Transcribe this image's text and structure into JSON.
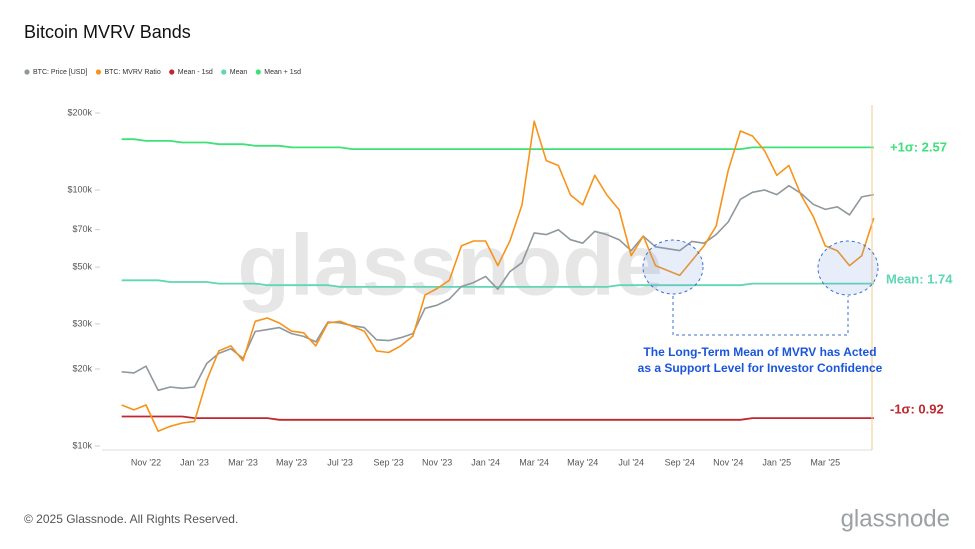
{
  "chart_data": {
    "type": "line",
    "title": "Bitcoin MVRV Bands",
    "categories": [
      null,
      null,
      "Nov '22",
      null,
      null,
      null,
      "Jan '23",
      null,
      null,
      null,
      "Mar '23",
      null,
      null,
      null,
      "May '23",
      null,
      null,
      null,
      "Jul '23",
      null,
      null,
      null,
      "Sep '23",
      null,
      null,
      null,
      "Nov '23",
      null,
      null,
      null,
      "Jan '24",
      null,
      null,
      null,
      "Mar '24",
      null,
      null,
      null,
      "May '24",
      null,
      null,
      null,
      "Jul '24",
      null,
      null,
      null,
      "Sep '24",
      null,
      null,
      null,
      "Nov '24",
      null,
      null,
      null,
      "Jan '25",
      null,
      null,
      null,
      "Mar '25",
      null,
      null,
      null,
      null
    ],
    "ylim": [
      10000,
      200000
    ],
    "yticks": [
      {
        "value": 10000,
        "label": "$10k"
      },
      {
        "value": 20000,
        "label": "$20k"
      },
      {
        "value": 30000,
        "label": "$30k"
      },
      {
        "value": 50000,
        "label": "$50k"
      },
      {
        "value": 70000,
        "label": "$70k"
      },
      {
        "value": 100000,
        "label": "$100k"
      },
      {
        "value": 200000,
        "label": "$200k"
      }
    ],
    "log_scale": true,
    "y2lim": [
      0.75,
      2.78
    ],
    "series": [
      {
        "name": "BTC: Price [USD]",
        "color": "#8e989d",
        "values": [
          19500,
          19300,
          20500,
          16500,
          17000,
          16800,
          17000,
          21000,
          23000,
          24000,
          22000,
          28000,
          28500,
          29000,
          27500,
          26800,
          25500,
          30500,
          30300,
          29500,
          29000,
          26000,
          25800,
          26500,
          27500,
          34500,
          35500,
          37500,
          42000,
          43500,
          46000,
          41000,
          48000,
          52000,
          68000,
          67000,
          70000,
          64000,
          62000,
          69000,
          67000,
          64000,
          58000,
          66000,
          60000,
          59000,
          58000,
          63000,
          62000,
          67000,
          75000,
          92000,
          98000,
          100000,
          96000,
          104000,
          97000,
          88000,
          84000,
          86000,
          80000,
          94000,
          96000
        ]
      },
      {
        "name": "BTC: MVRV Ratio",
        "color": "#f7931a",
        "axis": "y2",
        "values": [
          1.0,
          0.97,
          1.0,
          0.84,
          0.87,
          0.89,
          0.9,
          1.15,
          1.33,
          1.36,
          1.27,
          1.51,
          1.53,
          1.5,
          1.45,
          1.44,
          1.36,
          1.5,
          1.51,
          1.48,
          1.45,
          1.33,
          1.32,
          1.36,
          1.42,
          1.67,
          1.71,
          1.76,
          1.97,
          2.0,
          2.0,
          1.85,
          2.0,
          2.22,
          2.73,
          2.49,
          2.46,
          2.28,
          2.22,
          2.4,
          2.28,
          2.19,
          1.91,
          2.03,
          1.85,
          1.82,
          1.79,
          1.88,
          1.97,
          2.09,
          2.43,
          2.67,
          2.64,
          2.55,
          2.4,
          2.46,
          2.28,
          2.15,
          1.97,
          1.94,
          1.85,
          1.91,
          2.14
        ]
      },
      {
        "name": "Mean - 1sd",
        "color": "#c0262d",
        "axis": "y2",
        "values": [
          0.93,
          0.93,
          0.93,
          0.93,
          0.93,
          0.93,
          0.92,
          0.92,
          0.92,
          0.92,
          0.92,
          0.92,
          0.92,
          0.91,
          0.91,
          0.91,
          0.91,
          0.91,
          0.91,
          0.91,
          0.91,
          0.91,
          0.91,
          0.91,
          0.91,
          0.91,
          0.91,
          0.91,
          0.91,
          0.91,
          0.91,
          0.91,
          0.91,
          0.91,
          0.91,
          0.91,
          0.91,
          0.91,
          0.91,
          0.91,
          0.91,
          0.91,
          0.91,
          0.91,
          0.91,
          0.91,
          0.91,
          0.91,
          0.91,
          0.91,
          0.91,
          0.91,
          0.92,
          0.92,
          0.92,
          0.92,
          0.92,
          0.92,
          0.92,
          0.92,
          0.92,
          0.92,
          0.92
        ]
      },
      {
        "name": "Mean",
        "color": "#5fd6b4",
        "axis": "y2",
        "values": [
          1.76,
          1.76,
          1.76,
          1.76,
          1.75,
          1.75,
          1.75,
          1.75,
          1.74,
          1.74,
          1.74,
          1.74,
          1.73,
          1.73,
          1.73,
          1.73,
          1.73,
          1.73,
          1.72,
          1.72,
          1.72,
          1.72,
          1.72,
          1.72,
          1.72,
          1.72,
          1.72,
          1.72,
          1.72,
          1.72,
          1.72,
          1.72,
          1.72,
          1.72,
          1.72,
          1.72,
          1.72,
          1.72,
          1.72,
          1.72,
          1.72,
          1.73,
          1.73,
          1.73,
          1.73,
          1.73,
          1.73,
          1.73,
          1.73,
          1.73,
          1.73,
          1.73,
          1.74,
          1.74,
          1.74,
          1.74,
          1.74,
          1.74,
          1.74,
          1.74,
          1.74,
          1.74,
          1.74
        ]
      },
      {
        "name": "Mean + 1sd",
        "color": "#3ee07a",
        "axis": "y2",
        "values": [
          2.62,
          2.62,
          2.61,
          2.61,
          2.61,
          2.6,
          2.6,
          2.6,
          2.59,
          2.59,
          2.59,
          2.58,
          2.58,
          2.58,
          2.57,
          2.57,
          2.57,
          2.57,
          2.57,
          2.56,
          2.56,
          2.56,
          2.56,
          2.56,
          2.56,
          2.56,
          2.56,
          2.56,
          2.56,
          2.56,
          2.56,
          2.56,
          2.56,
          2.56,
          2.56,
          2.56,
          2.56,
          2.56,
          2.56,
          2.56,
          2.56,
          2.56,
          2.56,
          2.56,
          2.56,
          2.56,
          2.56,
          2.56,
          2.56,
          2.56,
          2.56,
          2.56,
          2.57,
          2.57,
          2.57,
          2.57,
          2.57,
          2.57,
          2.57,
          2.57,
          2.57,
          2.57,
          2.57
        ]
      }
    ],
    "annotations": [
      "+1σ: 2.57",
      "Mean: 1.74",
      "-1σ: 0.92"
    ],
    "callout": [
      "The Long-Term Mean of MVRV has Acted",
      "as a Support Level for Investor Confidence"
    ],
    "watermark": "glassnode",
    "footer": "© 2025 Glassnode. All Rights Reserved.",
    "logo": "glassnode"
  }
}
